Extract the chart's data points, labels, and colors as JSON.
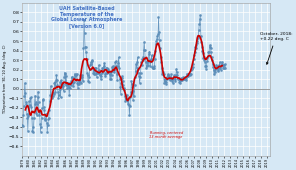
{
  "title_lines": [
    "UAH Satellite-Based",
    "Temperature of the",
    "Global Lower Atmosphere",
    "[Version 6.0]"
  ],
  "title_color": "#4472C4",
  "ylabel": "T Departure from '81-'10 Avg. (deg. C)",
  "annotation_text": "October, 2018:\n+0.22 deg. C",
  "running_avg_label": "Running, centered\n13-month average",
  "ylim": [
    -0.7,
    0.9
  ],
  "yticks": [
    -0.6,
    -0.5,
    -0.4,
    -0.3,
    -0.2,
    -0.1,
    0.0,
    0.1,
    0.2,
    0.3,
    0.4,
    0.5,
    0.6,
    0.7,
    0.8
  ],
  "bg_color": "#D6E8F5",
  "line_color": "#5B8DB8",
  "running_avg_color": "#CC0000",
  "monthly_data": [
    -0.38,
    -0.39,
    -0.27,
    -0.18,
    -0.07,
    0.06,
    -0.04,
    -0.14,
    -0.16,
    -0.26,
    -0.31,
    -0.44,
    -0.28,
    -0.13,
    -0.26,
    -0.17,
    -0.1,
    -0.09,
    -0.19,
    -0.31,
    -0.44,
    -0.45,
    -0.4,
    -0.31,
    -0.16,
    -0.07,
    -0.14,
    -0.25,
    -0.27,
    -0.16,
    -0.09,
    -0.03,
    -0.14,
    -0.27,
    -0.24,
    -0.37,
    -0.45,
    -0.4,
    -0.31,
    -0.2,
    -0.12,
    -0.11,
    -0.19,
    -0.22,
    -0.32,
    -0.33,
    -0.27,
    -0.26,
    -0.36,
    -0.45,
    -0.38,
    -0.32,
    -0.31,
    -0.22,
    -0.13,
    -0.06,
    0.03,
    -0.07,
    -0.1,
    -0.08,
    -0.07,
    -0.04,
    -0.05,
    0.06,
    0.07,
    -0.03,
    0.09,
    0.14,
    0.09,
    0.04,
    -0.03,
    -0.1,
    -0.06,
    0.0,
    0.07,
    -0.09,
    0.09,
    0.06,
    0.02,
    0.05,
    0.03,
    -0.02,
    0.12,
    0.17,
    0.16,
    0.04,
    0.13,
    0.06,
    0.01,
    0.04,
    0.06,
    0.02,
    -0.06,
    0.01,
    0.06,
    0.04,
    0.08,
    0.12,
    0.12,
    0.06,
    0.03,
    0.07,
    0.11,
    0.16,
    0.14,
    0.09,
    0.14,
    0.16,
    0.06,
    0.01,
    0.05,
    0.08,
    0.05,
    0.14,
    0.07,
    0.06,
    0.12,
    0.12,
    0.14,
    0.08,
    0.43,
    0.72,
    0.58,
    0.44,
    0.44,
    0.38,
    0.31,
    0.17,
    0.14,
    0.08,
    0.07,
    0.12,
    0.21,
    0.25,
    0.26,
    0.28,
    0.29,
    0.3,
    0.22,
    0.17,
    0.2,
    0.16,
    0.16,
    0.22,
    0.22,
    0.18,
    0.12,
    0.17,
    0.17,
    0.19,
    0.25,
    0.2,
    0.15,
    0.14,
    0.1,
    0.13,
    0.17,
    0.22,
    0.19,
    0.22,
    0.24,
    0.27,
    0.15,
    0.13,
    0.17,
    0.22,
    0.17,
    0.22,
    0.21,
    0.19,
    0.19,
    0.16,
    0.1,
    0.18,
    0.1,
    0.14,
    0.23,
    0.19,
    0.24,
    0.2,
    0.18,
    0.21,
    0.28,
    0.29,
    0.24,
    0.15,
    0.09,
    0.24,
    0.27,
    0.33,
    0.22,
    0.1,
    0.02,
    -0.05,
    0.06,
    0.11,
    0.13,
    0.08,
    0.04,
    0.01,
    -0.01,
    -0.07,
    -0.13,
    -0.1,
    -0.11,
    -0.06,
    -0.12,
    -0.16,
    -0.11,
    -0.17,
    -0.27,
    -0.18,
    -0.09,
    -0.03,
    0.08,
    0.05,
    0.02,
    -0.12,
    -0.02,
    -0.08,
    0.04,
    0.12,
    0.19,
    0.26,
    0.22,
    0.28,
    0.33,
    0.21,
    0.17,
    0.13,
    0.06,
    0.12,
    0.17,
    0.28,
    0.25,
    0.31,
    0.3,
    0.33,
    0.41,
    0.49,
    0.41,
    0.32,
    0.28,
    0.22,
    0.24,
    0.29,
    0.25,
    0.28,
    0.36,
    0.39,
    0.3,
    0.24,
    0.29,
    0.31,
    0.35,
    0.23,
    0.22,
    0.22,
    0.22,
    0.24,
    0.31,
    0.4,
    0.47,
    0.5,
    0.52,
    0.55,
    0.57,
    0.75,
    0.59,
    0.51,
    0.43,
    0.33,
    0.28,
    0.22,
    0.15,
    0.16,
    0.18,
    0.15,
    0.06,
    0.1,
    0.08,
    0.05,
    0.07,
    0.12,
    0.1,
    0.14,
    0.15,
    0.13,
    0.12,
    0.1,
    0.09,
    0.1,
    0.15,
    0.11,
    0.08,
    0.06,
    0.1,
    0.12,
    0.14,
    0.1,
    0.08,
    0.14,
    0.21,
    0.18,
    0.14,
    0.1,
    0.11,
    0.1,
    0.07,
    0.08,
    0.06,
    0.09,
    0.11,
    0.1,
    0.09,
    0.12,
    0.1,
    0.1,
    0.12,
    0.1,
    0.09,
    0.11,
    0.13,
    0.16,
    0.13,
    0.14,
    0.15,
    0.16,
    0.16,
    0.14,
    0.16,
    0.2,
    0.22,
    0.21,
    0.23,
    0.26,
    0.31,
    0.35,
    0.39,
    0.44,
    0.43,
    0.46,
    0.48,
    0.5,
    0.53,
    0.55,
    0.62,
    0.68,
    0.73,
    0.77,
    0.55,
    0.49,
    0.44,
    0.4,
    0.37,
    0.32,
    0.33,
    0.3,
    0.28,
    0.24,
    0.21,
    0.24,
    0.29,
    0.32,
    0.34,
    0.38,
    0.38,
    0.44,
    0.46,
    0.43,
    0.38,
    0.33,
    0.3,
    0.26,
    0.23,
    0.2,
    0.15,
    0.18,
    0.2,
    0.22,
    0.25,
    0.24,
    0.22,
    0.2,
    0.19,
    0.22,
    0.25,
    0.28,
    0.22,
    0.2,
    0.24,
    0.26,
    0.28,
    0.25,
    0.22,
    0.22,
    0.25,
    0.26,
    0.22
  ],
  "start_year": 1979,
  "start_month": 1,
  "xtick_years": [
    1979,
    1980,
    1981,
    1982,
    1983,
    1984,
    1985,
    1986,
    1987,
    1988,
    1989,
    1990,
    1991,
    1992,
    1993,
    1994,
    1995,
    1996,
    1997,
    1998,
    1999,
    2000,
    2001,
    2002,
    2003,
    2004,
    2005,
    2006,
    2007,
    2008,
    2009,
    2010,
    2011,
    2012,
    2013,
    2014,
    2015,
    2016,
    2017,
    2018,
    2019
  ]
}
